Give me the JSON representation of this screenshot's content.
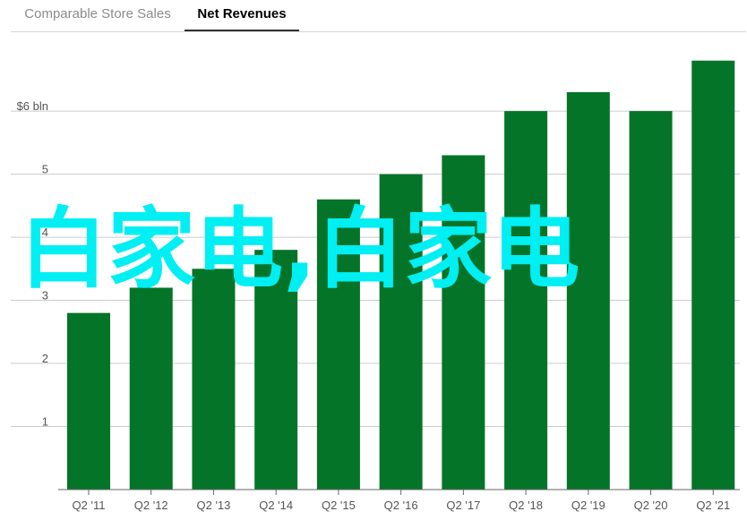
{
  "tabs": [
    {
      "label": "Comparable Store Sales",
      "active": false
    },
    {
      "label": "Net Revenues",
      "active": true
    }
  ],
  "overlay_text": "白家电,白家电",
  "colors": {
    "bar": "#047428",
    "grid": "#cccccc",
    "axis": "#666666",
    "overlay": "#00eff3"
  },
  "chart_data": {
    "type": "bar",
    "title": "",
    "xlabel": "",
    "ylabel": "",
    "categories": [
      "Q2 '11",
      "Q2 '12",
      "Q2 '13",
      "Q2 '14",
      "Q2 '15",
      "Q2 '16",
      "Q2 '17",
      "Q2 '18",
      "Q2 '19",
      "Q2 '20",
      "Q2 '21"
    ],
    "values": [
      2.8,
      3.2,
      3.5,
      3.8,
      4.6,
      5.0,
      5.3,
      6.0,
      6.3,
      6.0,
      6.8
    ],
    "ylim": [
      0,
      7
    ],
    "yticks": [
      {
        "value": 1,
        "label": "1"
      },
      {
        "value": 2,
        "label": "2"
      },
      {
        "value": 3,
        "label": "3"
      },
      {
        "value": 4,
        "label": "4"
      },
      {
        "value": 5,
        "label": "5"
      },
      {
        "value": 6,
        "label": "$6 bln"
      }
    ],
    "grid": true,
    "legend": "none"
  }
}
